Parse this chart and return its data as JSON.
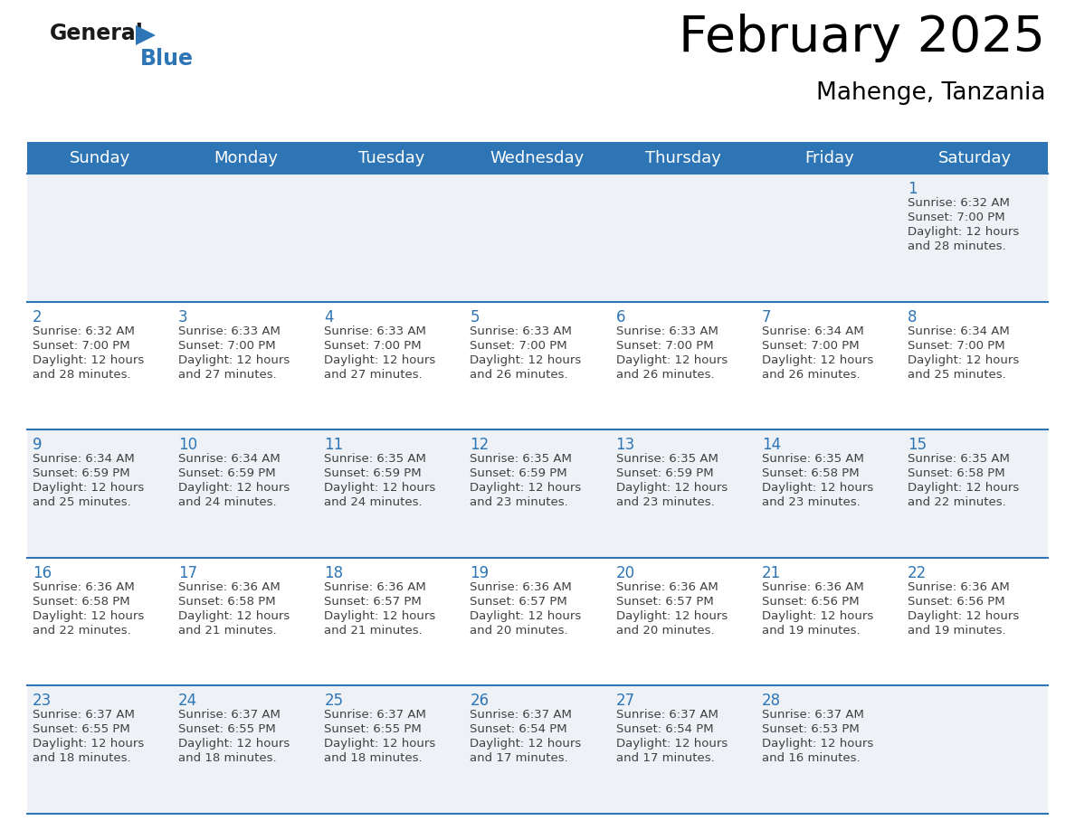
{
  "title": "February 2025",
  "subtitle": "Mahenge, Tanzania",
  "header_bg": "#2E75B6",
  "header_text_color": "#FFFFFF",
  "days_of_week": [
    "Sunday",
    "Monday",
    "Tuesday",
    "Wednesday",
    "Thursday",
    "Friday",
    "Saturday"
  ],
  "cell_bg_odd": "#EEF2F7",
  "cell_bg_even": "#FFFFFF",
  "row_line_color": "#2E75B6",
  "day_num_color": "#2E75B6",
  "info_text_color": "#404040",
  "logo_color_general": "#1a1a1a",
  "logo_color_blue": "#2E75B6",
  "logo_triangle_color": "#2E75B6",
  "calendar": [
    [
      {
        "day": null,
        "sunrise": null,
        "sunset": null,
        "daylight": null
      },
      {
        "day": null,
        "sunrise": null,
        "sunset": null,
        "daylight": null
      },
      {
        "day": null,
        "sunrise": null,
        "sunset": null,
        "daylight": null
      },
      {
        "day": null,
        "sunrise": null,
        "sunset": null,
        "daylight": null
      },
      {
        "day": null,
        "sunrise": null,
        "sunset": null,
        "daylight": null
      },
      {
        "day": null,
        "sunrise": null,
        "sunset": null,
        "daylight": null
      },
      {
        "day": 1,
        "sunrise": "6:32 AM",
        "sunset": "7:00 PM",
        "daylight": "12 hours and 28 minutes."
      }
    ],
    [
      {
        "day": 2,
        "sunrise": "6:32 AM",
        "sunset": "7:00 PM",
        "daylight": "12 hours and 28 minutes."
      },
      {
        "day": 3,
        "sunrise": "6:33 AM",
        "sunset": "7:00 PM",
        "daylight": "12 hours and 27 minutes."
      },
      {
        "day": 4,
        "sunrise": "6:33 AM",
        "sunset": "7:00 PM",
        "daylight": "12 hours and 27 minutes."
      },
      {
        "day": 5,
        "sunrise": "6:33 AM",
        "sunset": "7:00 PM",
        "daylight": "12 hours and 26 minutes."
      },
      {
        "day": 6,
        "sunrise": "6:33 AM",
        "sunset": "7:00 PM",
        "daylight": "12 hours and 26 minutes."
      },
      {
        "day": 7,
        "sunrise": "6:34 AM",
        "sunset": "7:00 PM",
        "daylight": "12 hours and 26 minutes."
      },
      {
        "day": 8,
        "sunrise": "6:34 AM",
        "sunset": "7:00 PM",
        "daylight": "12 hours and 25 minutes."
      }
    ],
    [
      {
        "day": 9,
        "sunrise": "6:34 AM",
        "sunset": "6:59 PM",
        "daylight": "12 hours and 25 minutes."
      },
      {
        "day": 10,
        "sunrise": "6:34 AM",
        "sunset": "6:59 PM",
        "daylight": "12 hours and 24 minutes."
      },
      {
        "day": 11,
        "sunrise": "6:35 AM",
        "sunset": "6:59 PM",
        "daylight": "12 hours and 24 minutes."
      },
      {
        "day": 12,
        "sunrise": "6:35 AM",
        "sunset": "6:59 PM",
        "daylight": "12 hours and 23 minutes."
      },
      {
        "day": 13,
        "sunrise": "6:35 AM",
        "sunset": "6:59 PM",
        "daylight": "12 hours and 23 minutes."
      },
      {
        "day": 14,
        "sunrise": "6:35 AM",
        "sunset": "6:58 PM",
        "daylight": "12 hours and 23 minutes."
      },
      {
        "day": 15,
        "sunrise": "6:35 AM",
        "sunset": "6:58 PM",
        "daylight": "12 hours and 22 minutes."
      }
    ],
    [
      {
        "day": 16,
        "sunrise": "6:36 AM",
        "sunset": "6:58 PM",
        "daylight": "12 hours and 22 minutes."
      },
      {
        "day": 17,
        "sunrise": "6:36 AM",
        "sunset": "6:58 PM",
        "daylight": "12 hours and 21 minutes."
      },
      {
        "day": 18,
        "sunrise": "6:36 AM",
        "sunset": "6:57 PM",
        "daylight": "12 hours and 21 minutes."
      },
      {
        "day": 19,
        "sunrise": "6:36 AM",
        "sunset": "6:57 PM",
        "daylight": "12 hours and 20 minutes."
      },
      {
        "day": 20,
        "sunrise": "6:36 AM",
        "sunset": "6:57 PM",
        "daylight": "12 hours and 20 minutes."
      },
      {
        "day": 21,
        "sunrise": "6:36 AM",
        "sunset": "6:56 PM",
        "daylight": "12 hours and 19 minutes."
      },
      {
        "day": 22,
        "sunrise": "6:36 AM",
        "sunset": "6:56 PM",
        "daylight": "12 hours and 19 minutes."
      }
    ],
    [
      {
        "day": 23,
        "sunrise": "6:37 AM",
        "sunset": "6:55 PM",
        "daylight": "12 hours and 18 minutes."
      },
      {
        "day": 24,
        "sunrise": "6:37 AM",
        "sunset": "6:55 PM",
        "daylight": "12 hours and 18 minutes."
      },
      {
        "day": 25,
        "sunrise": "6:37 AM",
        "sunset": "6:55 PM",
        "daylight": "12 hours and 18 minutes."
      },
      {
        "day": 26,
        "sunrise": "6:37 AM",
        "sunset": "6:54 PM",
        "daylight": "12 hours and 17 minutes."
      },
      {
        "day": 27,
        "sunrise": "6:37 AM",
        "sunset": "6:54 PM",
        "daylight": "12 hours and 17 minutes."
      },
      {
        "day": 28,
        "sunrise": "6:37 AM",
        "sunset": "6:53 PM",
        "daylight": "12 hours and 16 minutes."
      },
      {
        "day": null,
        "sunrise": null,
        "sunset": null,
        "daylight": null
      }
    ]
  ]
}
